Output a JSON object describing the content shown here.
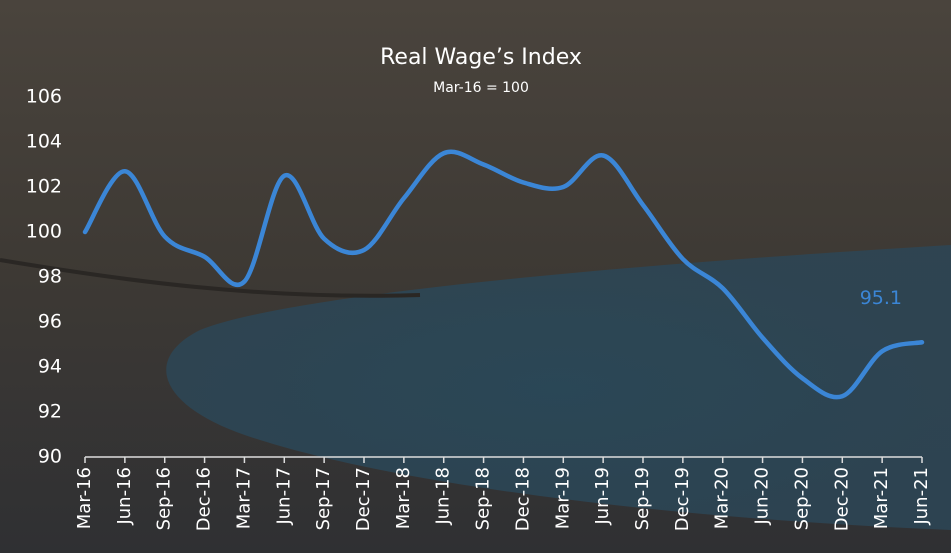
{
  "chart_data": {
    "type": "line",
    "title": "Real Wage’s Index",
    "subtitle": "Mar-16 = 100",
    "categories": [
      "Mar-16",
      "Jun-16",
      "Sep-16",
      "Dec-16",
      "Mar-17",
      "Jun-17",
      "Sep-17",
      "Dec-17",
      "Mar-18",
      "Jun-18",
      "Sep-18",
      "Dec-18",
      "Mar-19",
      "Jun-19",
      "Sep-19",
      "Dec-19",
      "Mar-20",
      "Jun-20",
      "Sep-20",
      "Dec-20",
      "Mar-21",
      "Jun-21"
    ],
    "series": [
      {
        "name": "Real Wage’s Index",
        "color": "#3b86d6",
        "values": [
          100,
          102.7,
          99.8,
          98.9,
          97.8,
          102.5,
          99.7,
          99.2,
          101.5,
          103.5,
          103.0,
          102.2,
          102.0,
          103.4,
          101.2,
          98.8,
          97.5,
          95.3,
          93.5,
          92.7,
          94.7,
          95.1
        ]
      }
    ],
    "ylim": [
      90,
      106
    ],
    "yticks": [
      90,
      92,
      94,
      96,
      98,
      100,
      102,
      104,
      106
    ]
  }
}
